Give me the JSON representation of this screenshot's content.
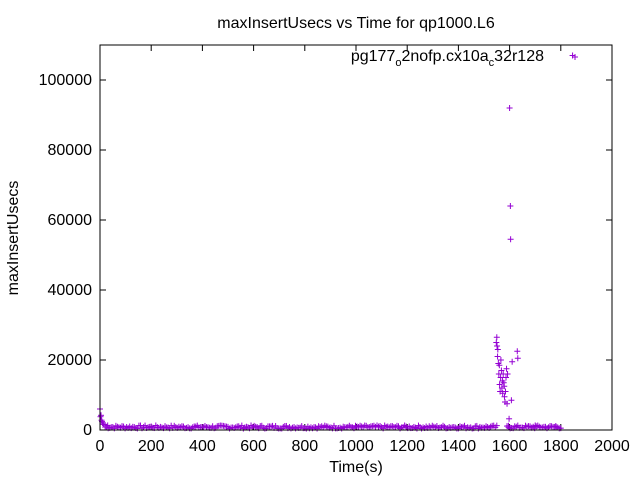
{
  "colors": {
    "series": "#9400d3",
    "axis": "#000000",
    "background": "#ffffff"
  },
  "chart_data": {
    "type": "scatter",
    "title": "maxInsertUsecs vs Time for qp1000.L6",
    "xlabel": "Time(s)",
    "ylabel": "maxInsertUsecs",
    "xlim": [
      0,
      2000
    ],
    "ylim": [
      0,
      110000
    ],
    "xticks": [
      0,
      200,
      400,
      600,
      800,
      1000,
      1200,
      1400,
      1600,
      1800,
      2000
    ],
    "yticks": [
      0,
      20000,
      40000,
      60000,
      80000,
      100000
    ],
    "grid": false,
    "legend_position": "top-right",
    "marker": "plus-icon",
    "series": [
      {
        "name": "pg177_o2nofp.cx10a_c32r128",
        "legend_parts": [
          "pg177",
          "o",
          "2nofp.cx10a",
          "c",
          "32r128"
        ],
        "points": [
          [
            0,
            6000
          ],
          [
            2,
            3800
          ],
          [
            4,
            4200
          ],
          [
            6,
            2800
          ],
          [
            8,
            2400
          ],
          [
            10,
            2000
          ],
          [
            14,
            1600
          ],
          [
            20,
            1400
          ],
          [
            30,
            1300
          ],
          [
            1548,
            25000
          ],
          [
            1550,
            26500
          ],
          [
            1551,
            24000
          ],
          [
            1553,
            21000
          ],
          [
            1554,
            23000
          ],
          [
            1556,
            19000
          ],
          [
            1558,
            16000
          ],
          [
            1560,
            18500
          ],
          [
            1561,
            13000
          ],
          [
            1563,
            11000
          ],
          [
            1565,
            15000
          ],
          [
            1566,
            20000
          ],
          [
            1568,
            17000
          ],
          [
            1570,
            12000
          ],
          [
            1572,
            14000
          ],
          [
            1573,
            10500
          ],
          [
            1575,
            16000
          ],
          [
            1577,
            13500
          ],
          [
            1579,
            12500
          ],
          [
            1580,
            9500
          ],
          [
            1582,
            8000
          ],
          [
            1584,
            11000
          ],
          [
            1586,
            15000
          ],
          [
            1588,
            17500
          ],
          [
            1590,
            7500
          ],
          [
            1592,
            16000
          ],
          [
            1596,
            1200
          ],
          [
            1598,
            3200
          ],
          [
            1600,
            92000
          ],
          [
            1603,
            64000
          ],
          [
            1604,
            54500
          ],
          [
            1607,
            8500
          ],
          [
            1610,
            19500
          ],
          [
            1630,
            22500
          ],
          [
            1632,
            20500
          ],
          [
            1700,
            1300
          ],
          [
            1780,
            1100
          ],
          [
            1846,
            107000
          ]
        ],
        "baseline": {
          "x_ranges": [
            [
              20,
              1550
            ],
            [
              1590,
              1800
            ]
          ],
          "y_min": 400,
          "y_max": 1300
        }
      }
    ]
  }
}
